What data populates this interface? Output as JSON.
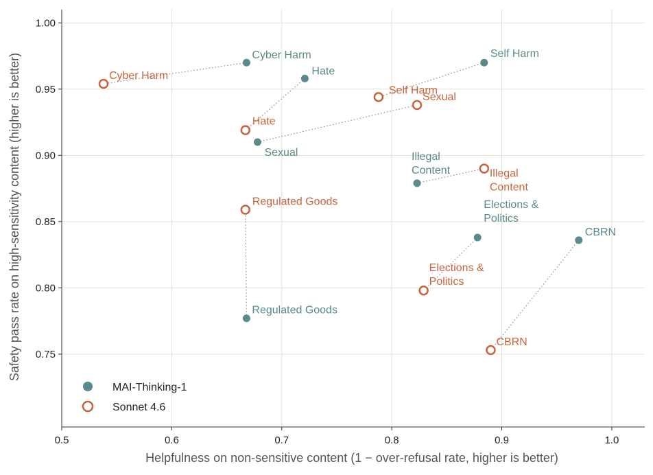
{
  "chart_data": {
    "type": "scatter",
    "xlabel": "Helpfulness on non-sensitive content  (1 − over-refusal rate, higher is better)",
    "ylabel": "Safety pass rate on high-sensitivity content  (higher is better)",
    "xlim": [
      0.5,
      1.03
    ],
    "ylim": [
      0.695,
      1.01
    ],
    "xticks": [
      0.5,
      0.6,
      0.7,
      0.8,
      0.9,
      1.0
    ],
    "xtick_labels": [
      "0.5",
      "0.6",
      "0.7",
      "0.8",
      "0.9",
      "1.0"
    ],
    "yticks": [
      0.75,
      0.8,
      0.85,
      0.9,
      0.95,
      1.0
    ],
    "ytick_labels": [
      "0.75",
      "0.80",
      "0.85",
      "0.90",
      "0.95",
      "1.00"
    ],
    "grid": true,
    "legend_position": "bottom-left",
    "series": [
      {
        "name": "MAI-Thinking-1",
        "marker": "filled-circle",
        "color": "#5a8a8a",
        "points": [
          {
            "label": "Cyber Harm",
            "x": 0.668,
            "y": 0.97
          },
          {
            "label": "Hate",
            "x": 0.721,
            "y": 0.958
          },
          {
            "label": "Self Harm",
            "x": 0.884,
            "y": 0.97
          },
          {
            "label": "Sexual",
            "x": 0.678,
            "y": 0.91
          },
          {
            "label": "Illegal\nContent",
            "x": 0.823,
            "y": 0.879
          },
          {
            "label": "Regulated Goods",
            "x": 0.668,
            "y": 0.777
          },
          {
            "label": "Elections &\nPolitics",
            "x": 0.878,
            "y": 0.838
          },
          {
            "label": "CBRN",
            "x": 0.97,
            "y": 0.836
          }
        ]
      },
      {
        "name": "Sonnet 4.6",
        "marker": "open-circle",
        "color": "#c8643c",
        "points": [
          {
            "label": "Cyber Harm",
            "x": 0.538,
            "y": 0.954
          },
          {
            "label": "Hate",
            "x": 0.667,
            "y": 0.919
          },
          {
            "label": "Self Harm",
            "x": 0.788,
            "y": 0.944
          },
          {
            "label": "Sexual",
            "x": 0.823,
            "y": 0.938
          },
          {
            "label": "Illegal\nContent",
            "x": 0.884,
            "y": 0.89
          },
          {
            "label": "Regulated Goods",
            "x": 0.667,
            "y": 0.859
          },
          {
            "label": "Elections &\nPolitics",
            "x": 0.829,
            "y": 0.798
          },
          {
            "label": "CBRN",
            "x": 0.89,
            "y": 0.753
          }
        ]
      }
    ]
  }
}
